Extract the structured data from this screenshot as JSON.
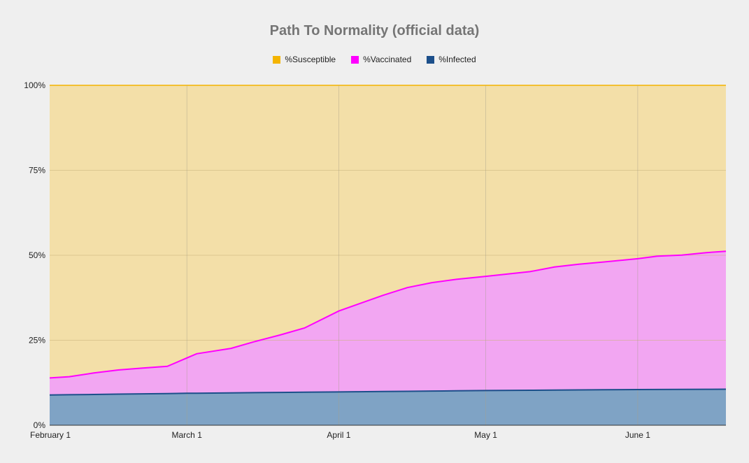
{
  "chart_data": {
    "type": "area",
    "stacked": true,
    "percent_stacked": true,
    "title": "Path To Normality (official data)",
    "xlabel": "",
    "ylabel": "",
    "x_ticks": [
      "February 1",
      "March 1",
      "April 1",
      "May 1",
      "June 1"
    ],
    "x_range": [
      "2021-02-01",
      "2021-06-19"
    ],
    "y_ticks": [
      "0%",
      "25%",
      "50%",
      "75%",
      "100%"
    ],
    "ylim": [
      0,
      100
    ],
    "grid": true,
    "legend_position": "top",
    "series": [
      {
        "name": "%Infected",
        "color": "#1c4f8a",
        "fill": "#7fa3c5",
        "points": [
          [
            "2021-02-01",
            8.9
          ],
          [
            "2021-03-01",
            9.4
          ],
          [
            "2021-04-01",
            9.8
          ],
          [
            "2021-05-01",
            10.2
          ],
          [
            "2021-06-01",
            10.5
          ],
          [
            "2021-06-19",
            10.6
          ]
        ]
      },
      {
        "name": "%Vaccinated",
        "color": "#ff00ff",
        "fill": "#f2a6f2",
        "points": [
          [
            "2021-02-01",
            5.0
          ],
          [
            "2021-02-05",
            5.3
          ],
          [
            "2021-02-10",
            6.3
          ],
          [
            "2021-02-15",
            7.1
          ],
          [
            "2021-02-20",
            7.6
          ],
          [
            "2021-02-25",
            8.0
          ],
          [
            "2021-03-01",
            10.4
          ],
          [
            "2021-03-03",
            11.6
          ],
          [
            "2021-03-10",
            13.1
          ],
          [
            "2021-03-15",
            15.1
          ],
          [
            "2021-03-20",
            16.9
          ],
          [
            "2021-03-25",
            18.9
          ],
          [
            "2021-04-01",
            23.8
          ],
          [
            "2021-04-05",
            25.8
          ],
          [
            "2021-04-10",
            28.3
          ],
          [
            "2021-04-15",
            30.5
          ],
          [
            "2021-04-20",
            31.9
          ],
          [
            "2021-04-25",
            32.8
          ],
          [
            "2021-05-01",
            33.6
          ],
          [
            "2021-05-10",
            34.9
          ],
          [
            "2021-05-15",
            36.2
          ],
          [
            "2021-05-20",
            37.0
          ],
          [
            "2021-05-25",
            37.6
          ],
          [
            "2021-06-01",
            38.5
          ],
          [
            "2021-06-05",
            39.2
          ],
          [
            "2021-06-10",
            39.5
          ],
          [
            "2021-06-15",
            40.2
          ],
          [
            "2021-06-19",
            40.6
          ]
        ]
      },
      {
        "name": "%Susceptible",
        "color": "#f4b400",
        "fill": "#f3dfa8",
        "remainder_to": 100
      }
    ]
  }
}
